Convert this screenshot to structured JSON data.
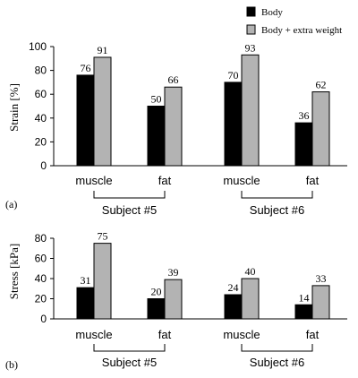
{
  "legend": {
    "placement": "top-right",
    "entries": [
      {
        "label": "Body",
        "color": "#000000"
      },
      {
        "label": "Body + extra weight",
        "color": "#b3b3b3"
      }
    ]
  },
  "chart_data": [
    {
      "type": "bar",
      "panel_label": "(a)",
      "ylabel": "Strain [%]",
      "ylim": [
        0,
        100
      ],
      "yticks": [
        "0",
        "20",
        "40",
        "60",
        "80",
        "100"
      ],
      "categories": [
        "muscle",
        "fat",
        "muscle",
        "fat"
      ],
      "groups": [
        {
          "label": "Subject #5",
          "categories": [
            0,
            1
          ]
        },
        {
          "label": "Subject #6",
          "categories": [
            2,
            3
          ]
        }
      ],
      "series": [
        {
          "name": "Body",
          "color": "#000000",
          "values": [
            76,
            50,
            70,
            36
          ]
        },
        {
          "name": "Body + extra weight",
          "color": "#b3b3b3",
          "values": [
            91,
            66,
            93,
            62
          ]
        }
      ],
      "grid": false
    },
    {
      "type": "bar",
      "panel_label": "(b)",
      "ylabel": "Stress [kPa]",
      "ylim": [
        0,
        80
      ],
      "yticks": [
        "0",
        "20",
        "40",
        "60",
        "80"
      ],
      "categories": [
        "muscle",
        "fat",
        "muscle",
        "fat"
      ],
      "groups": [
        {
          "label": "Subject #5",
          "categories": [
            0,
            1
          ]
        },
        {
          "label": "Subject #6",
          "categories": [
            2,
            3
          ]
        }
      ],
      "series": [
        {
          "name": "Body",
          "color": "#000000",
          "values": [
            31,
            20,
            24,
            14
          ]
        },
        {
          "name": "Body + extra weight",
          "color": "#b3b3b3",
          "values": [
            75,
            39,
            40,
            33
          ]
        }
      ],
      "grid": false
    }
  ]
}
